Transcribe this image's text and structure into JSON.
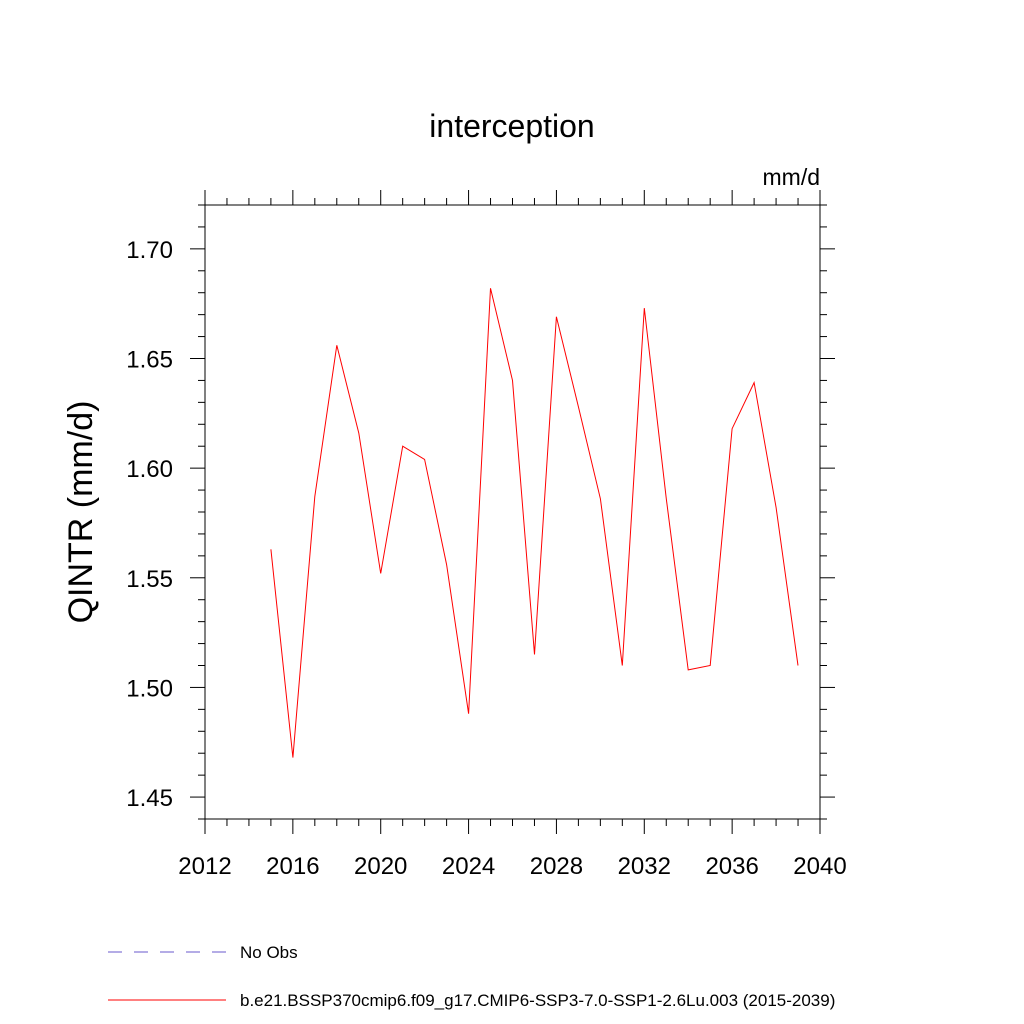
{
  "chart_data": {
    "type": "line",
    "title": "interception",
    "units_label": "mm/d",
    "ylabel": "QINTR  (mm/d)",
    "xlabel": "",
    "xlim": [
      2012,
      2040
    ],
    "ylim": [
      1.44,
      1.72
    ],
    "x_ticks": [
      2012,
      2016,
      2020,
      2024,
      2028,
      2032,
      2036,
      2040
    ],
    "x_tick_labels": [
      "2012",
      "2016",
      "2020",
      "2024",
      "2028",
      "2032",
      "2036",
      "2040"
    ],
    "y_ticks": [
      1.45,
      1.5,
      1.55,
      1.6,
      1.65,
      1.7
    ],
    "y_tick_labels": [
      "1.45",
      "1.50",
      "1.55",
      "1.60",
      "1.65",
      "1.70"
    ],
    "grid": false,
    "legend_position": "bottom",
    "series": [
      {
        "name": "b.e21.BSSP370cmip6.f09_g17.CMIP6-SSP3-7.0-SSP1-2.6Lu.003 (2015-2039)",
        "color": "#ff0000",
        "dash": "solid",
        "x": [
          2015,
          2016,
          2017,
          2018,
          2019,
          2020,
          2021,
          2022,
          2023,
          2024,
          2025,
          2026,
          2027,
          2028,
          2029,
          2030,
          2031,
          2032,
          2033,
          2034,
          2035,
          2036,
          2037,
          2038,
          2039
        ],
        "values": [
          1.563,
          1.468,
          1.587,
          1.656,
          1.616,
          1.552,
          1.61,
          1.604,
          1.556,
          1.488,
          1.682,
          1.64,
          1.515,
          1.669,
          1.628,
          1.586,
          1.51,
          1.673,
          1.586,
          1.508,
          1.51,
          1.618,
          1.639,
          1.582,
          1.51
        ]
      }
    ],
    "legend": [
      {
        "label": "No Obs",
        "color": "#6a5acd",
        "dash": "dashed"
      },
      {
        "label": "b.e21.BSSP370cmip6.f09_g17.CMIP6-SSP3-7.0-SSP1-2.6Lu.003 (2015-2039)",
        "color": "#ff0000",
        "dash": "solid"
      }
    ]
  }
}
